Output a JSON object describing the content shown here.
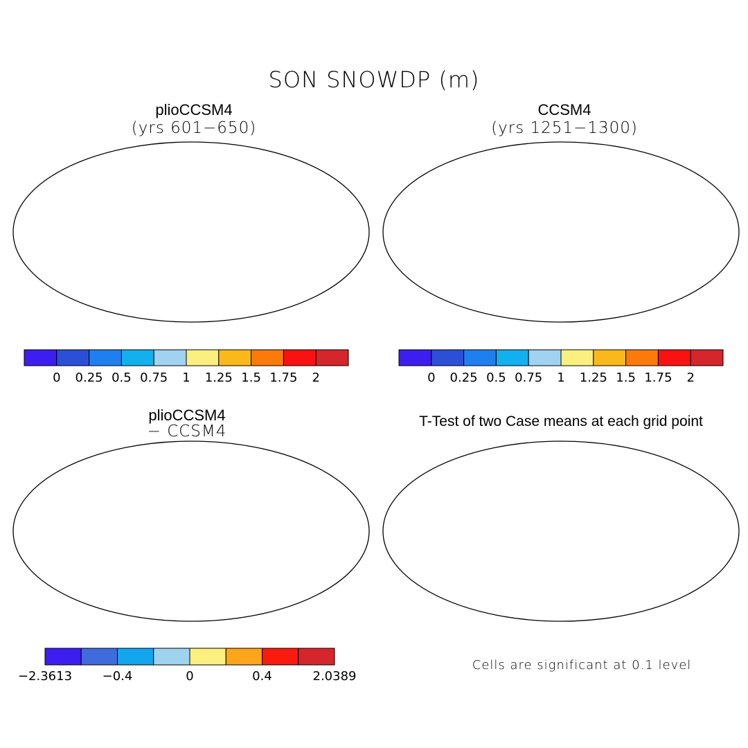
{
  "main_title": "SON SNOWDP (m)",
  "panels": {
    "top_left": {
      "title": "plioCCSM4",
      "subtitle": "(yrs 601−650)"
    },
    "top_right": {
      "title": "CCSM4",
      "subtitle": "(yrs 1251−1300)"
    },
    "bottom_left": {
      "title": "plioCCSM4",
      "subtitle": "− CCSM4"
    },
    "bottom_right": {
      "title": "T-Test of two Case means at each grid point",
      "note": "Cells are significant at 0.1 level"
    }
  },
  "colorbar_abs": {
    "colors": [
      "#3c1ef0",
      "#2c4fd8",
      "#1e7ff0",
      "#12b0ee",
      "#9fd3ef",
      "#fbf07f",
      "#fbb81b",
      "#fb7a0a",
      "#fa1111",
      "#d4262b"
    ],
    "labels": [
      "0",
      "0.25",
      "0.5",
      "0.75",
      "1",
      "1.25",
      "1.5",
      "1.75",
      "2"
    ]
  },
  "colorbar_diff": {
    "colors": [
      "#3c1ef0",
      "#3f6bdc",
      "#13a6ee",
      "#9fd3ef",
      "#fbf07f",
      "#fba51b",
      "#fa1a0e",
      "#d4262b"
    ],
    "labels": [
      "−2.3613",
      "−0.4",
      "0",
      "0.4",
      "2.0389"
    ]
  },
  "significance_color": "#ff0000"
}
